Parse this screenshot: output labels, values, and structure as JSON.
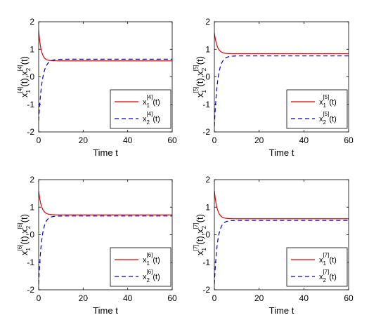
{
  "chart_data": [
    {
      "type": "line",
      "xlabel": "Time t",
      "ylabel_parts": [
        "x",
        "1",
        "[4]",
        "(t),x",
        "2",
        "[4]",
        "(t)"
      ],
      "xlim": [
        0,
        60
      ],
      "ylim": [
        -2,
        2
      ],
      "xticks": [
        "0",
        "20",
        "40",
        "60"
      ],
      "yticks": [
        "-2",
        "-1",
        "0",
        "1",
        "2"
      ],
      "legend_placement": "right",
      "series": [
        {
          "name_parts": [
            "x",
            "1",
            "[4]",
            "(t)"
          ],
          "color": "#e00000",
          "dash": "solid",
          "start": 1.7,
          "final": 0.58,
          "rate": 0.9
        },
        {
          "name_parts": [
            "x",
            "2",
            "[4]",
            "(t)"
          ],
          "color": "#0000cc",
          "dash": "dashed",
          "start": -1.6,
          "final": 0.64,
          "rate": 0.65
        }
      ]
    },
    {
      "type": "line",
      "xlabel": "Time t",
      "ylabel_parts": [
        "x",
        "1",
        "[5]",
        "(t),x",
        "2",
        "[5]",
        "(t)"
      ],
      "xlim": [
        0,
        60
      ],
      "ylim": [
        -2,
        2
      ],
      "xticks": [
        "0",
        "20",
        "40",
        "60"
      ],
      "yticks": [
        "-2",
        "-1",
        "0",
        "1",
        "2"
      ],
      "legend_placement": "right",
      "series": [
        {
          "name_parts": [
            "x",
            "1",
            "[5]",
            "(t)"
          ],
          "color": "#e00000",
          "dash": "solid",
          "start": 1.6,
          "final": 0.84,
          "rate": 0.8
        },
        {
          "name_parts": [
            "x",
            "2",
            "[5]",
            "(t)"
          ],
          "color": "#0000cc",
          "dash": "dashed",
          "start": -1.8,
          "final": 0.76,
          "rate": 0.7
        }
      ]
    },
    {
      "type": "line",
      "xlabel": "Time t",
      "ylabel_parts": [
        "x",
        "1",
        "[6]",
        "(t),x",
        "2",
        "[6]",
        "(t)"
      ],
      "xlim": [
        0,
        60
      ],
      "ylim": [
        -2,
        2
      ],
      "xticks": [
        "0",
        "20",
        "40",
        "60"
      ],
      "yticks": [
        "-2",
        "-1",
        "0",
        "1",
        "2"
      ],
      "legend_placement": "right",
      "series": [
        {
          "name_parts": [
            "x",
            "1",
            "[6]",
            "(t)"
          ],
          "color": "#e00000",
          "dash": "solid",
          "start": 1.6,
          "final": 0.72,
          "rate": 0.8
        },
        {
          "name_parts": [
            "x",
            "2",
            "[6]",
            "(t)"
          ],
          "color": "#0000cc",
          "dash": "dashed",
          "start": -1.8,
          "final": 0.68,
          "rate": 0.75
        }
      ]
    },
    {
      "type": "line",
      "xlabel": "Time t",
      "ylabel_parts": [
        "x",
        "1",
        "[7]",
        "(t),x",
        "2",
        "[7]",
        "(t)"
      ],
      "xlim": [
        0,
        60
      ],
      "ylim": [
        -2,
        2
      ],
      "xticks": [
        "0",
        "20",
        "40",
        "60"
      ],
      "yticks": [
        "-2",
        "-1",
        "0",
        "1",
        "2"
      ],
      "legend_placement": "right",
      "series": [
        {
          "name_parts": [
            "x",
            "1",
            "[7]",
            "(t)"
          ],
          "color": "#e00000",
          "dash": "solid",
          "start": 1.6,
          "final": 0.58,
          "rate": 0.8
        },
        {
          "name_parts": [
            "x",
            "2",
            "[7]",
            "(t)"
          ],
          "color": "#0000cc",
          "dash": "dashed",
          "start": -1.8,
          "final": 0.52,
          "rate": 0.75
        }
      ]
    }
  ]
}
